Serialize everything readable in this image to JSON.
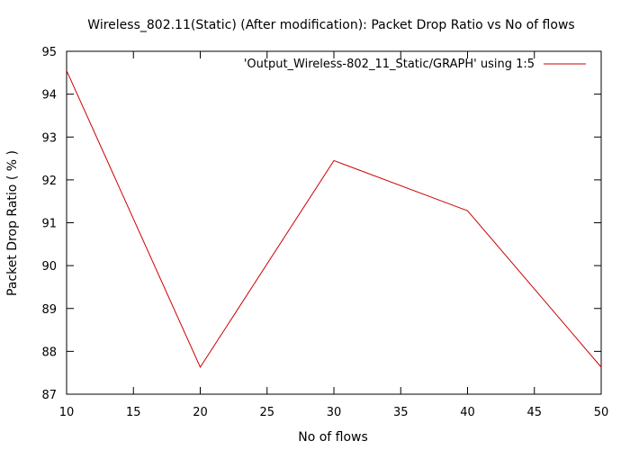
{
  "chart_data": {
    "type": "line",
    "title": "Wireless_802.11(Static) (After modification): Packet Drop Ratio vs No of flows",
    "xlabel": "No of flows",
    "ylabel": "Packet Drop Ratio ( % )",
    "xlim": [
      10,
      50
    ],
    "ylim": [
      87,
      95
    ],
    "xticks": [
      10,
      15,
      20,
      25,
      30,
      35,
      40,
      45,
      50
    ],
    "yticks": [
      87,
      88,
      89,
      90,
      91,
      92,
      93,
      94,
      95
    ],
    "grid": false,
    "legend_position": "top-right",
    "series": [
      {
        "name": "'Output_Wireless-802_11_Static/GRAPH' using 1:5",
        "color": "#cc0000",
        "x": [
          10,
          20,
          30,
          40,
          50
        ],
        "y": [
          94.55,
          87.63,
          92.45,
          91.28,
          87.63
        ]
      }
    ]
  }
}
